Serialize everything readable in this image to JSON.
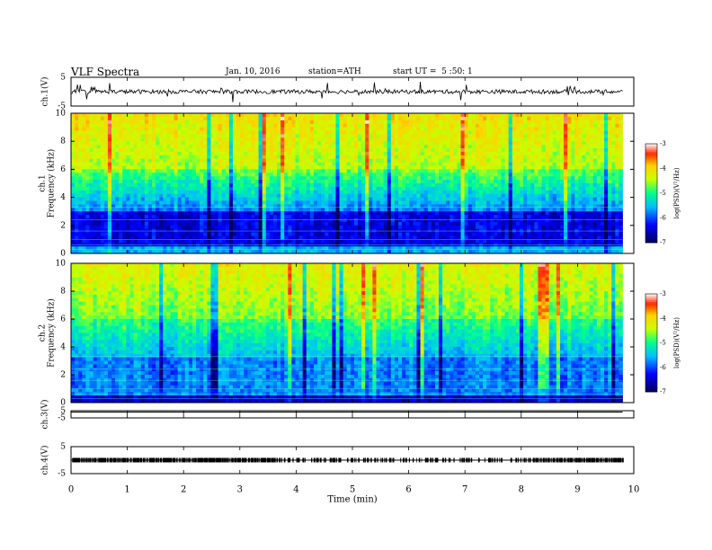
{
  "header": {
    "title": "VLF Spectra",
    "date": "Jan. 10, 2016",
    "station": "station=ATH",
    "start_ut": "start UT =  5 :50: 1"
  },
  "chart_data": [
    {
      "type": "line",
      "panel": "ch1-waveform",
      "ylabel": "ch.1(V)",
      "ylim": [
        -5,
        5
      ],
      "y_ticks": [
        "5",
        "-5"
      ],
      "x_range_min": [
        0,
        9.8
      ],
      "baseline_v": 0
    },
    {
      "type": "heatmap",
      "panel": "ch1-spectrogram",
      "ylabel": "ch.1 Frequency (kHz)",
      "ylim": [
        0,
        10
      ],
      "y_ticks": [
        "0",
        "2",
        "4",
        "6",
        "8",
        "10"
      ],
      "colorbar": {
        "label": "log(PSD)(V²/Hz)",
        "range": [
          -7,
          -3
        ],
        "ticks": [
          "-3",
          "-4",
          "-5",
          "-6",
          "-7"
        ],
        "colors": [
          "#000060",
          "#0000ff",
          "#00c8ff",
          "#00ff60",
          "#ffff00",
          "#ff0000",
          "#ffffff"
        ]
      }
    },
    {
      "type": "heatmap",
      "panel": "ch2-spectrogram",
      "ylabel": "ch.2 Frequency (kHz)",
      "ylim": [
        0,
        10
      ],
      "y_ticks": [
        "0",
        "2",
        "4",
        "6",
        "8",
        "10"
      ],
      "colorbar": {
        "label": "log(PSD)(V²/Hz)",
        "range": [
          -7,
          -3
        ],
        "ticks": [
          "-3",
          "-4",
          "-5",
          "-6",
          "-7"
        ]
      }
    },
    {
      "type": "line",
      "panel": "ch3-waveform",
      "ylabel": "ch.3(V)",
      "ylim": [
        -5,
        5
      ],
      "y_ticks": [
        "5",
        "-5"
      ],
      "baseline_v": 3.2
    },
    {
      "type": "line",
      "panel": "ch4-waveform",
      "ylabel": "ch.4(V)",
      "ylim": [
        -5,
        5
      ],
      "y_ticks": [
        "5",
        "-5"
      ],
      "baseline_v": 0
    }
  ],
  "x_axis": {
    "label": "Time (min)",
    "range": [
      0,
      10
    ],
    "ticks": [
      "0",
      "1",
      "2",
      "3",
      "4",
      "5",
      "6",
      "7",
      "8",
      "9",
      "10"
    ]
  }
}
